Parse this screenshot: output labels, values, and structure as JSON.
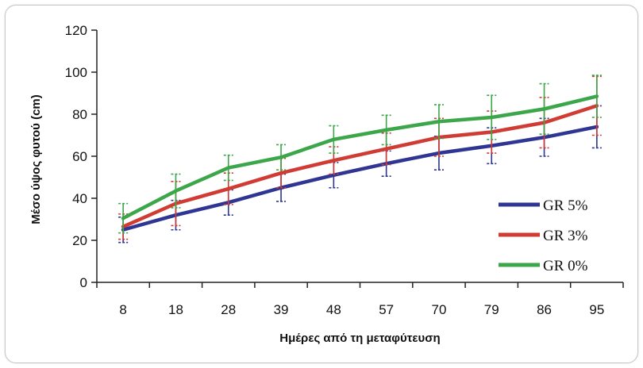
{
  "chart_data": {
    "type": "line",
    "title": "",
    "xlabel": "Ημέρες από τη μεταφύτευση",
    "ylabel": "Μέσο ύψος φυτού (cm)",
    "categories": [
      "8",
      "18",
      "28",
      "39",
      "48",
      "57",
      "70",
      "79",
      "86",
      "95"
    ],
    "ylim": [
      0,
      120
    ],
    "yticks": [
      0,
      20,
      40,
      60,
      80,
      100,
      120
    ],
    "grid": false,
    "legend_position": "right",
    "series": [
      {
        "name": "GR 5%",
        "color": "#2e3592",
        "values": [
          25,
          32,
          38,
          45,
          51,
          56.5,
          61.5,
          65,
          69,
          74
        ],
        "error": [
          6,
          7,
          6,
          6.5,
          6,
          6,
          8,
          8.5,
          9,
          10
        ]
      },
      {
        "name": "GR 3%",
        "color": "#d03b33",
        "values": [
          26.5,
          37.5,
          44.5,
          52,
          58,
          63.5,
          69,
          71.5,
          76,
          84
        ],
        "error": [
          6,
          10.5,
          7.5,
          7,
          6.5,
          7.5,
          9,
          10,
          12,
          14
        ]
      },
      {
        "name": "GR 0%",
        "color": "#3ca64a",
        "values": [
          30.5,
          43.5,
          54.5,
          59.5,
          68,
          72.5,
          76.5,
          78.5,
          82.5,
          88.5
        ],
        "error": [
          7,
          8,
          6,
          6,
          6.5,
          7,
          8,
          10.5,
          12,
          10
        ]
      }
    ]
  }
}
